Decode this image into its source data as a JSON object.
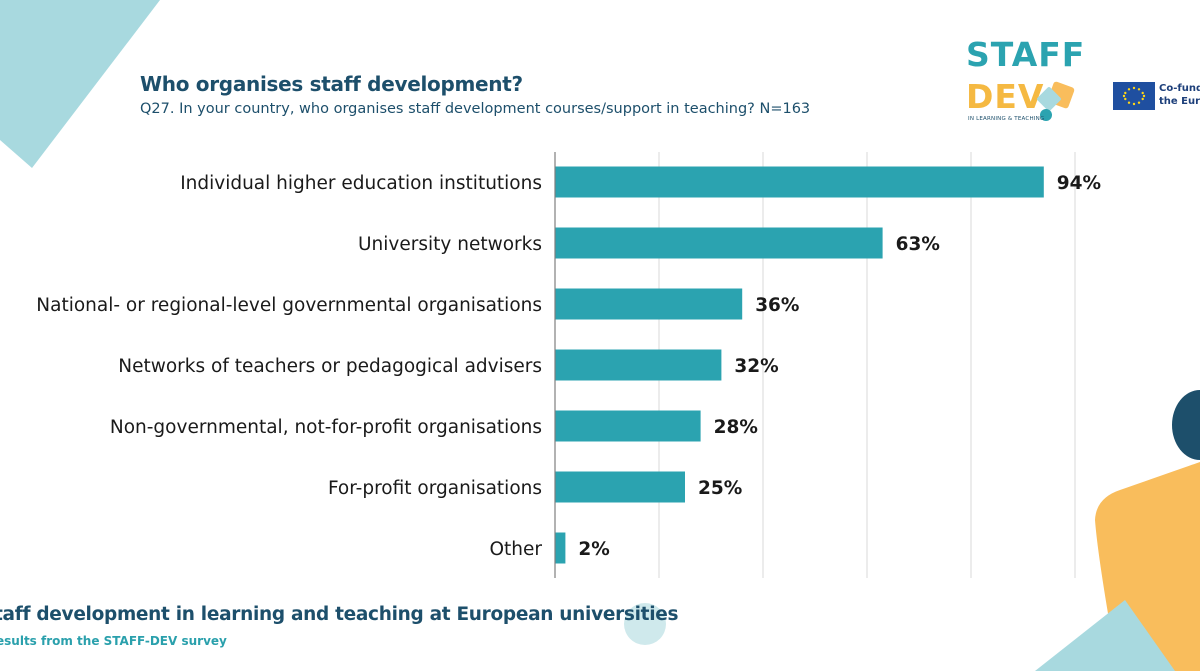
{
  "header": {
    "title": "Who organises staff development?",
    "subtitle": "Q27. In your country, who organises staff development courses/support in teaching? N=163"
  },
  "logos": {
    "staffdev_word1": "STAFF",
    "staffdev_word2": "DEV",
    "staffdev_tagline": "IN LEARNING & TEACHING",
    "eu_line1": "Co-funded",
    "eu_line2": "the Europ"
  },
  "footer": {
    "title": "taff development in learning and teaching at European universities",
    "subtitle": "esults from the STAFF-DEV survey"
  },
  "colors": {
    "bar": "#2ba3b0",
    "title": "#1d4f6b",
    "accent_teal_light": "#a8d9df",
    "accent_orange": "#f9bd5c",
    "accent_navy": "#1d4f6b"
  },
  "chart_data": {
    "type": "bar",
    "orientation": "horizontal",
    "categories": [
      "Individual higher education institutions",
      "University networks",
      "National- or regional-level governmental organisations",
      "Networks of teachers or pedagogical advisers",
      "Non-governmental, not-for-profit organisations",
      "For-profit organisations",
      "Other"
    ],
    "values": [
      94,
      63,
      36,
      32,
      28,
      25,
      2
    ],
    "value_labels": [
      "94%",
      "63%",
      "36%",
      "32%",
      "28%",
      "25%",
      "2%"
    ],
    "xlim": [
      0,
      100
    ],
    "grid": true,
    "grid_step": 20,
    "legend": "none"
  }
}
